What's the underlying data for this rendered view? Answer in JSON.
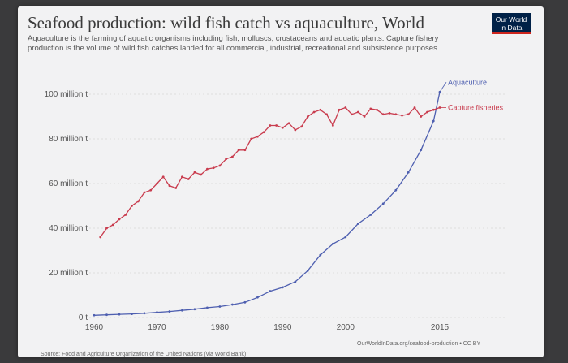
{
  "header": {
    "title": "Seafood production: wild fish catch vs aquaculture, World",
    "subtitle": "Aquaculture is the farming of aquatic organisms including fish, molluscs, crustaceans and aquatic plants. Capture fishery production is the volume of wild fish catches landed for all commercial, industrial, recreational and subsistence purposes.",
    "logo_line1": "Our World",
    "logo_line2": "in Data"
  },
  "footer": {
    "source": "Source: Food and Agriculture Organization of the United Nations (via World Bank)",
    "link": "OurWorldInData.org/seafood-production • CC BY"
  },
  "colors": {
    "aquaculture": "#4e5fb0",
    "capture": "#c93c4e",
    "logo_bg": "#002147",
    "logo_accent": "#ce261e"
  },
  "chart_data": {
    "type": "line",
    "title": "Seafood production: wild fish catch vs aquaculture, World",
    "ylim": [
      0,
      100000000
    ],
    "xlim": [
      1960,
      2015
    ],
    "yticks": [
      {
        "value": 0,
        "label": "0 t"
      },
      {
        "value": 20000000,
        "label": "20 million t"
      },
      {
        "value": 40000000,
        "label": "40 million t"
      },
      {
        "value": 60000000,
        "label": "60 million t"
      },
      {
        "value": 80000000,
        "label": "80 million t"
      },
      {
        "value": 100000000,
        "label": "100 million t"
      }
    ],
    "xticks": [
      1960,
      1970,
      1980,
      1990,
      2000,
      2015
    ],
    "grid": true,
    "series": [
      {
        "name": "Aquaculture",
        "x": [
          1960,
          1962,
          1964,
          1966,
          1968,
          1970,
          1972,
          1974,
          1976,
          1978,
          1980,
          1982,
          1984,
          1986,
          1988,
          1990,
          1992,
          1994,
          1996,
          1998,
          2000,
          2002,
          2004,
          2006,
          2008,
          2010,
          2012,
          2014,
          2015
        ],
        "values": [
          1000000,
          1200000,
          1400000,
          1600000,
          1900000,
          2300000,
          2700000,
          3200000,
          3700000,
          4400000,
          4900000,
          5800000,
          6800000,
          9000000,
          11800000,
          13500000,
          16000000,
          21000000,
          28000000,
          33000000,
          36000000,
          42000000,
          46000000,
          51000000,
          57000000,
          65000000,
          75000000,
          88000000,
          101000000
        ]
      },
      {
        "name": "Capture fisheries",
        "x": [
          1961,
          1962,
          1963,
          1964,
          1965,
          1966,
          1967,
          1968,
          1969,
          1970,
          1971,
          1972,
          1973,
          1974,
          1975,
          1976,
          1977,
          1978,
          1979,
          1980,
          1981,
          1982,
          1983,
          1984,
          1985,
          1986,
          1987,
          1988,
          1989,
          1990,
          1991,
          1992,
          1993,
          1994,
          1995,
          1996,
          1997,
          1998,
          1999,
          2000,
          2001,
          2002,
          2003,
          2004,
          2005,
          2006,
          2007,
          2008,
          2009,
          2010,
          2011,
          2012,
          2013,
          2014,
          2015
        ],
        "values": [
          36000000,
          40000000,
          41500000,
          44000000,
          46000000,
          50000000,
          52000000,
          56000000,
          57000000,
          60000000,
          63000000,
          59000000,
          58000000,
          63000000,
          62000000,
          65000000,
          64000000,
          66500000,
          67000000,
          68000000,
          71000000,
          72000000,
          75000000,
          75000000,
          80000000,
          81000000,
          83000000,
          86000000,
          86000000,
          85000000,
          87000000,
          84000000,
          85500000,
          90000000,
          92000000,
          93000000,
          91000000,
          86000000,
          93000000,
          94000000,
          91000000,
          92000000,
          90000000,
          93500000,
          93000000,
          91000000,
          91500000,
          91000000,
          90500000,
          91000000,
          94000000,
          90000000,
          92000000,
          93000000,
          94000000
        ]
      }
    ]
  }
}
